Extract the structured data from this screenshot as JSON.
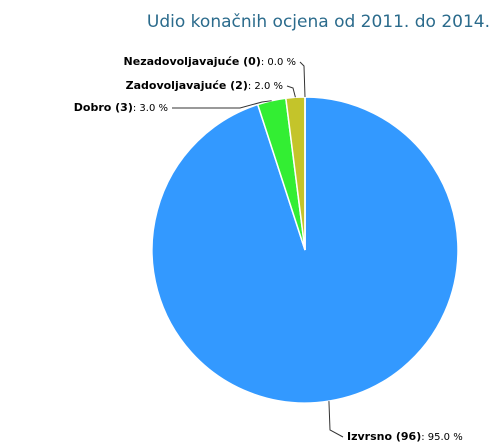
{
  "chart_data": {
    "type": "pie",
    "title": "Udio konačnih ocjena od 2011. do 2014.",
    "categories": [
      "Izvrsno (96)",
      "Dobro (3)",
      "Zadovoljavajuće (2)",
      "Nezadovoljavajuće (0)"
    ],
    "values": [
      95,
      3,
      2,
      0
    ],
    "value_labels": [
      ": 95.0 %",
      ": 3.0 %",
      ": 2.0 %",
      ": 0.0 %"
    ],
    "colors": [
      "#3399ff",
      "#33ee33",
      "#c4c42a",
      "#ff3333"
    ]
  }
}
